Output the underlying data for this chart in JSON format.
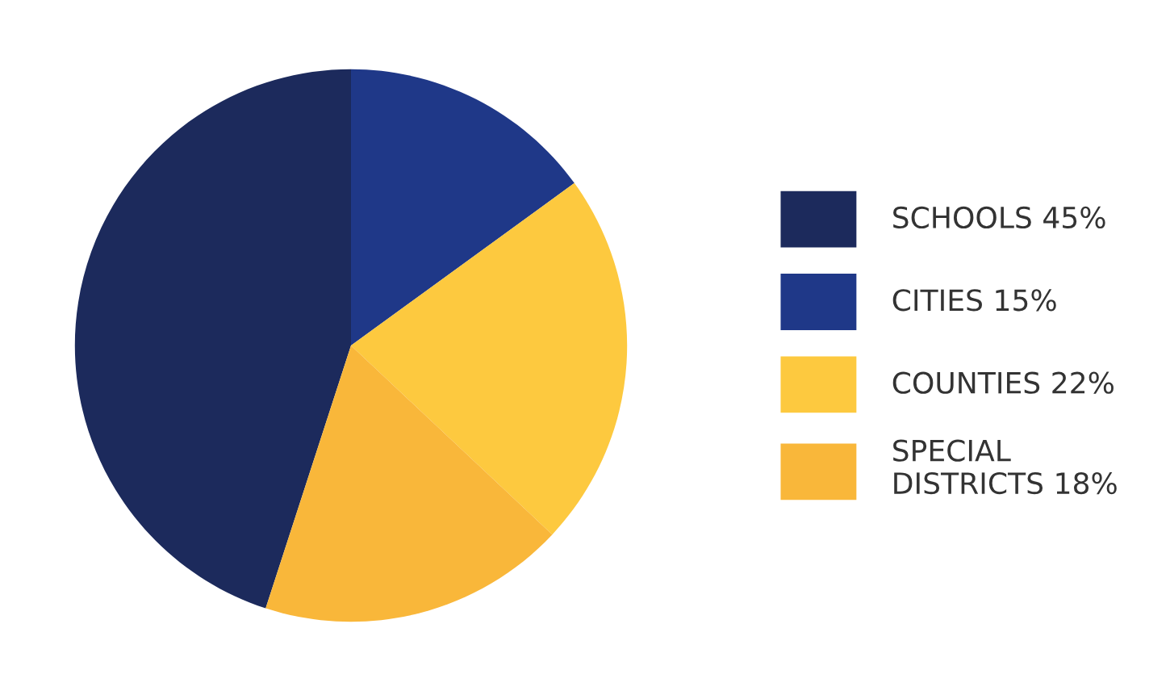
{
  "chart_data": {
    "type": "pie",
    "categories": [
      "SCHOOLS 45%",
      "CITIES 15%",
      "COUNTIES 22%",
      "SPECIAL\nDISTRICTS 18%"
    ],
    "values": [
      45,
      15,
      22,
      18
    ],
    "colors": [
      "#1c2a5c",
      "#1f3888",
      "#fdc93f",
      "#f9b73a"
    ],
    "legend": "right"
  }
}
